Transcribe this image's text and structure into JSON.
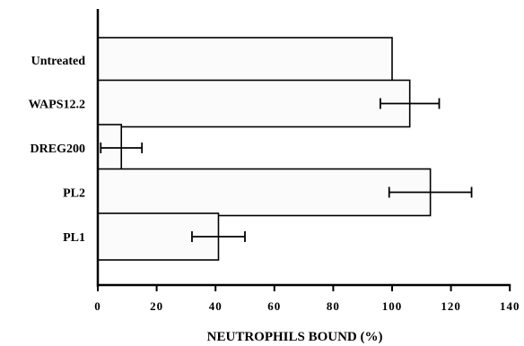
{
  "chart_data": {
    "type": "bar",
    "orientation": "horizontal",
    "title": "",
    "xlabel": "NEUTROPHILS BOUND (%)",
    "ylabel": "",
    "xlim": [
      0,
      140
    ],
    "xticks": [
      "0",
      "20",
      "40",
      "60",
      "80",
      "100",
      "120",
      "140"
    ],
    "categories": [
      "Untreated",
      "WAPS12.2",
      "DREG200",
      "PL2",
      "PL1"
    ],
    "values": [
      100,
      106,
      8,
      113,
      41
    ],
    "error": [
      null,
      10,
      7,
      14,
      9
    ],
    "grid": false,
    "legend": "none",
    "bar_fill": "#fbfbfb",
    "bar_stroke": "#000000"
  }
}
